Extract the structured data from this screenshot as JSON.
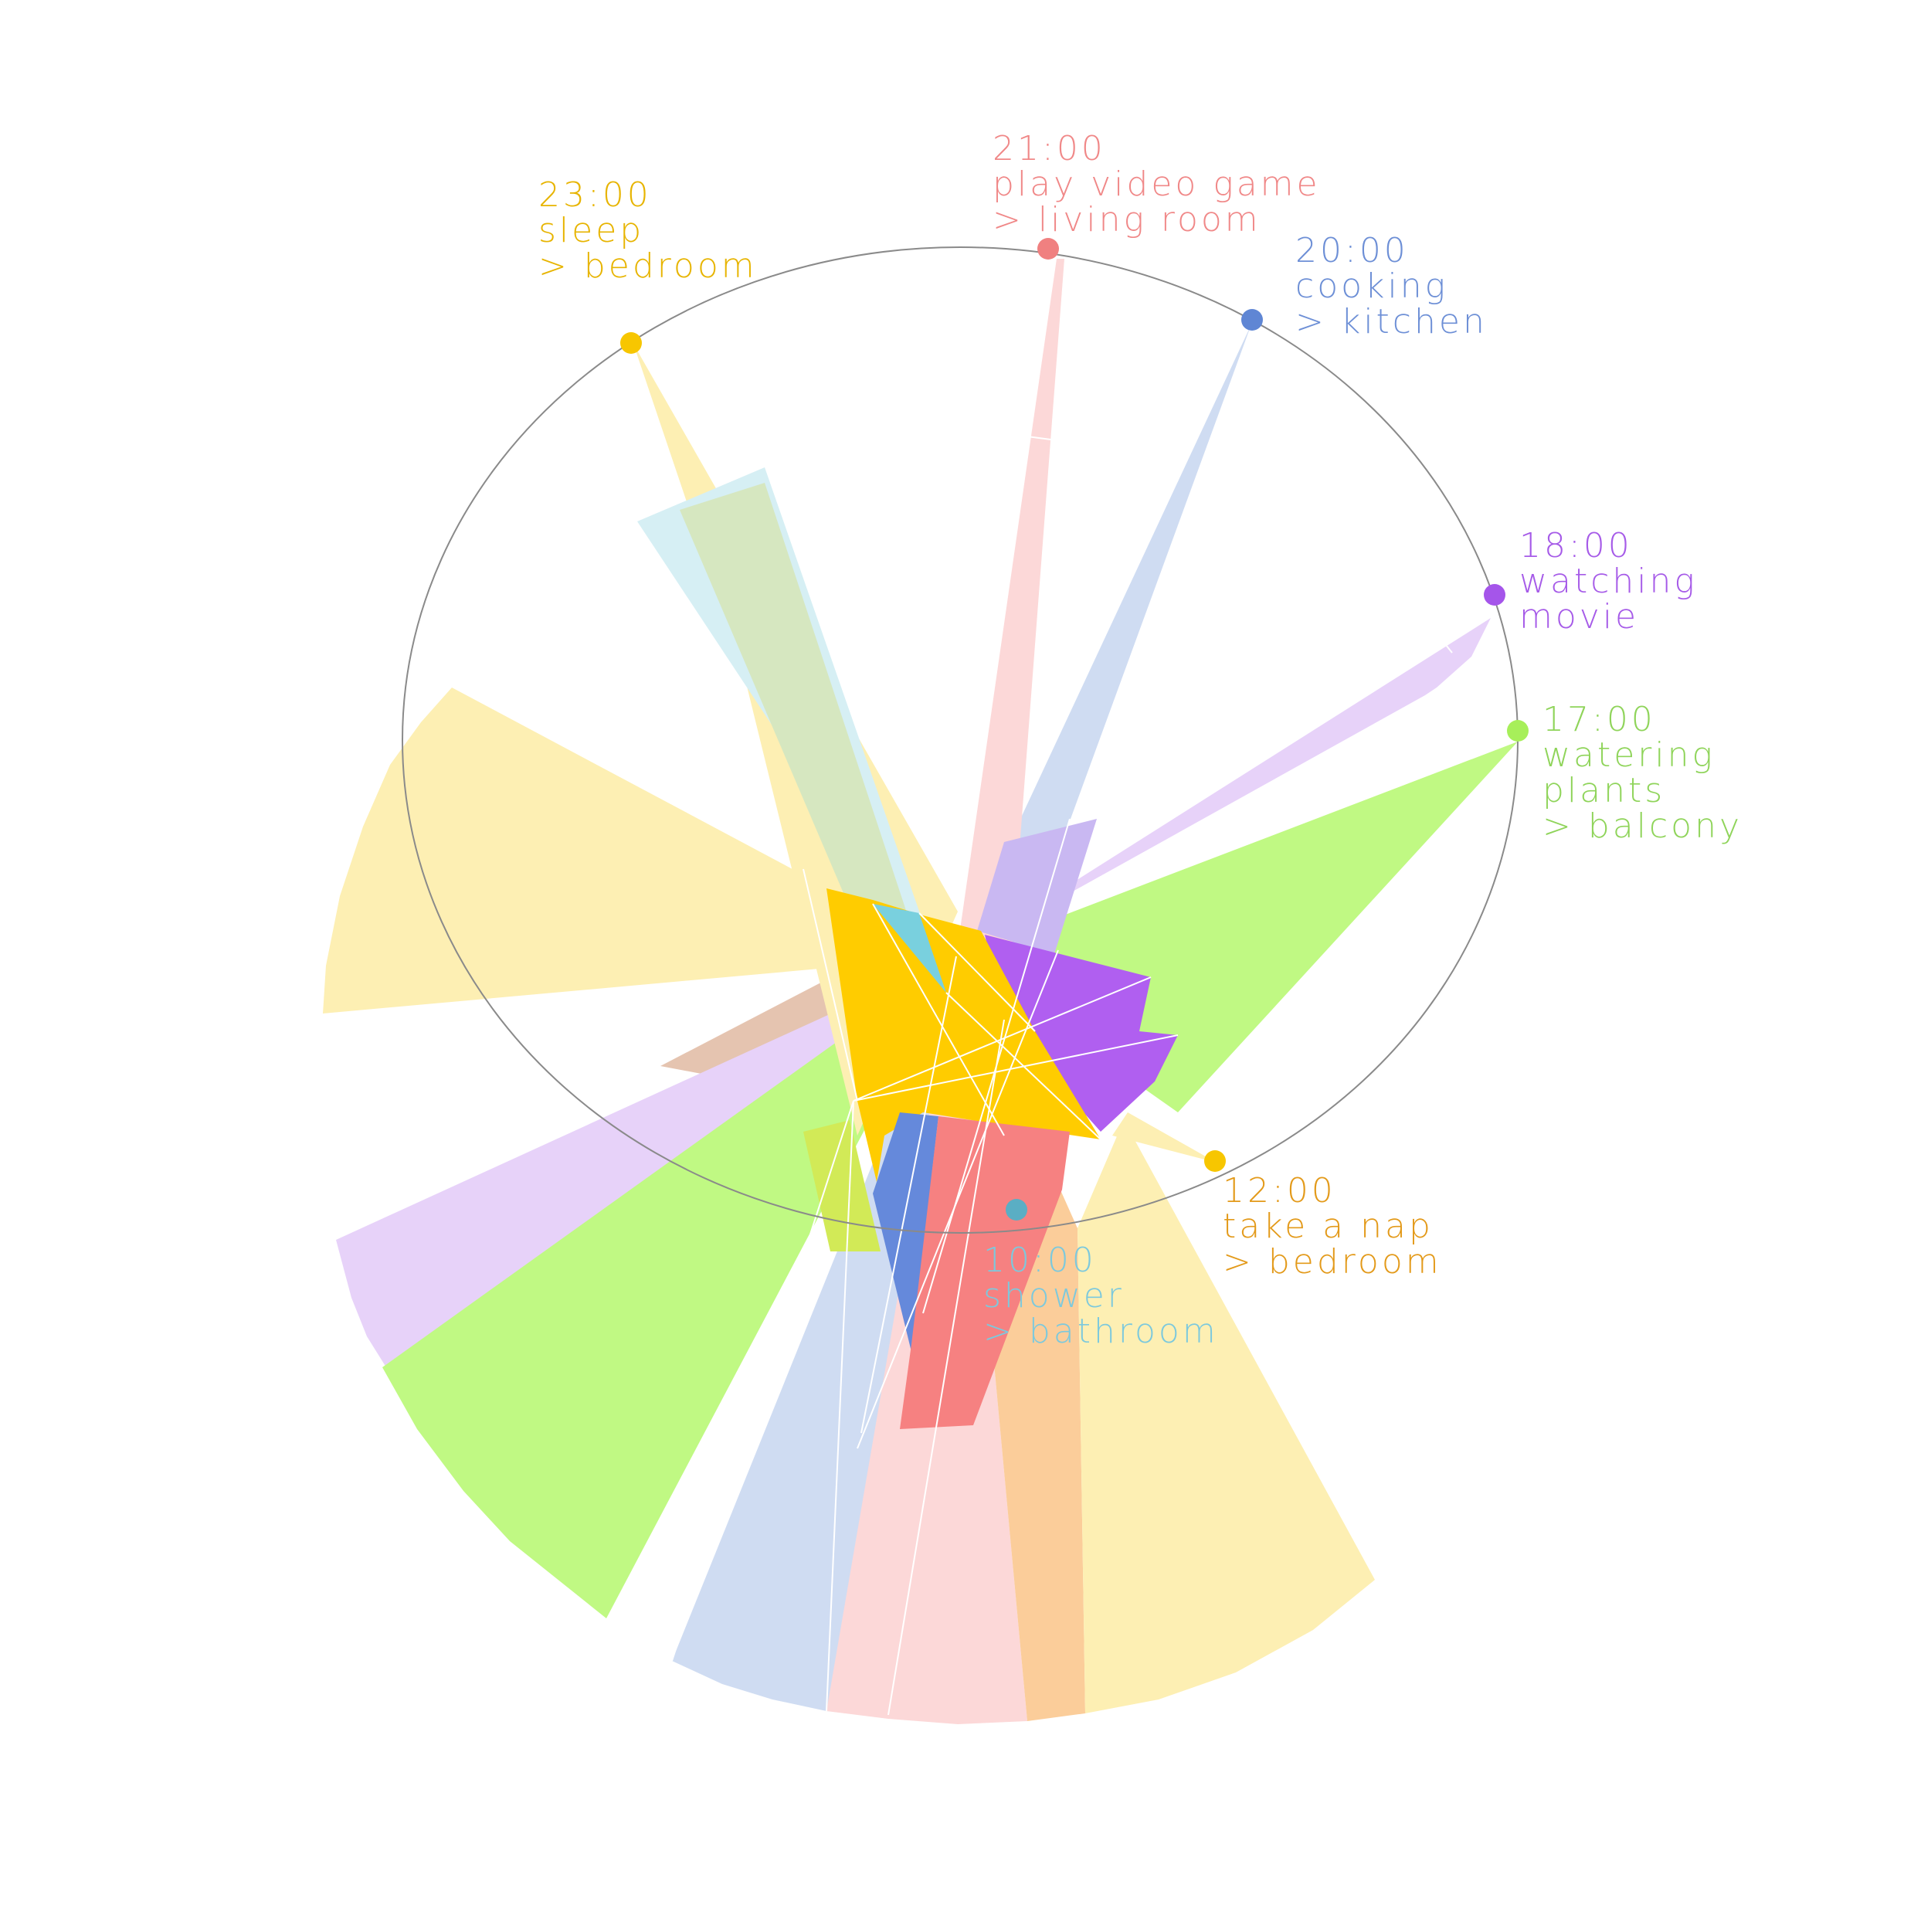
{
  "colors": {
    "sleep": "#f7c600",
    "nap": "#e7a21a",
    "game": "#f08080",
    "cooking": "#5f86d4",
    "movie": "#a555ea",
    "plants": "#a7ef5a",
    "shower": "#79cbdc",
    "ring": "#8a8a8a"
  },
  "events": [
    {
      "id": "sleep",
      "time": "23:00",
      "activity": "sleep",
      "room": "> bedroom"
    },
    {
      "id": "game",
      "time": "21:00",
      "activity": "play video game",
      "room": "> living room"
    },
    {
      "id": "cooking",
      "time": "20:00",
      "activity": "cooking",
      "room": "> kitchen"
    },
    {
      "id": "movie",
      "time": "18:00",
      "activity": "watching",
      "room": "movie"
    },
    {
      "id": "plants",
      "time": "17:00",
      "activity": "watering",
      "activity2": "plants",
      "room": "> balcony"
    },
    {
      "id": "nap",
      "time": "12:00",
      "activity": "take a nap",
      "room": "> bedroom"
    },
    {
      "id": "shower",
      "time": "10:00",
      "activity": "shower",
      "room": "> bathroom"
    }
  ]
}
